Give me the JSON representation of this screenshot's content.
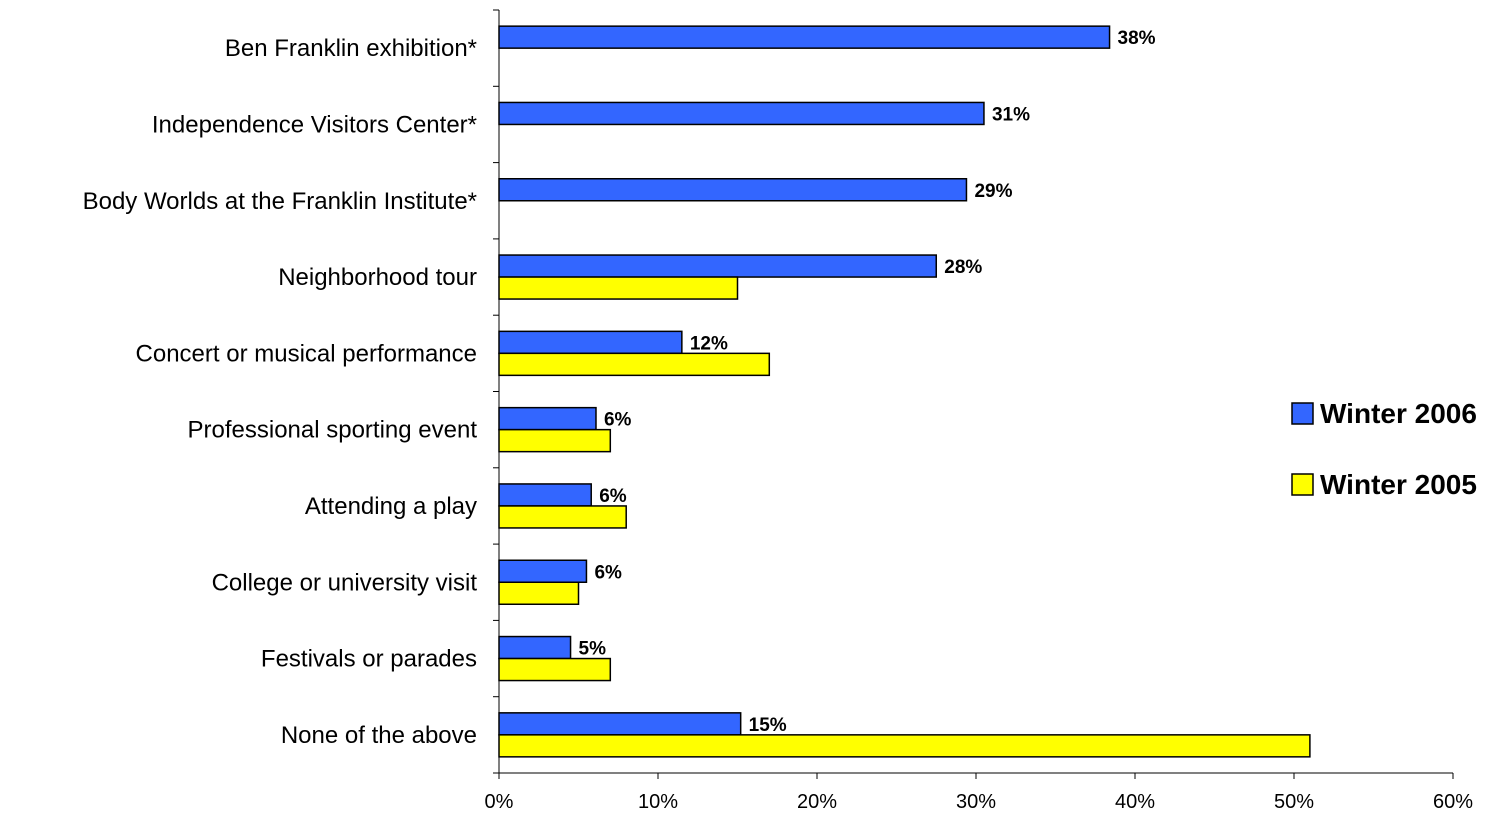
{
  "chart_data": {
    "type": "bar",
    "orientation": "horizontal",
    "categories": [
      "Ben Franklin exhibition*",
      "Independence Visitors Center*",
      "Body Worlds at the Franklin Institute*",
      "Neighborhood tour",
      "Concert or musical performance",
      "Professional sporting event",
      "Attending a play",
      "College or university visit",
      "Festivals or parades",
      "None of the above"
    ],
    "series": [
      {
        "name": "Winter 2006",
        "color": "#3366FF",
        "values": [
          38.4,
          30.5,
          29.4,
          27.5,
          11.5,
          6.1,
          5.8,
          5.5,
          4.5,
          15.2
        ],
        "data_labels": [
          "38%",
          "31%",
          "29%",
          "28%",
          "12%",
          "6%",
          "6%",
          "6%",
          "5%",
          "15%"
        ]
      },
      {
        "name": "Winter 2005",
        "color": "#FFFF00",
        "values": [
          null,
          null,
          null,
          15.0,
          17.0,
          7.0,
          8.0,
          5.0,
          7.0,
          51.0
        ],
        "data_labels": []
      }
    ],
    "x_ticks": [
      "0%",
      "10%",
      "20%",
      "30%",
      "40%",
      "50%",
      "60%"
    ],
    "xlim": [
      0,
      60
    ],
    "grid": false,
    "legend_position": "right",
    "title": "",
    "xlabel": "",
    "ylabel": ""
  }
}
